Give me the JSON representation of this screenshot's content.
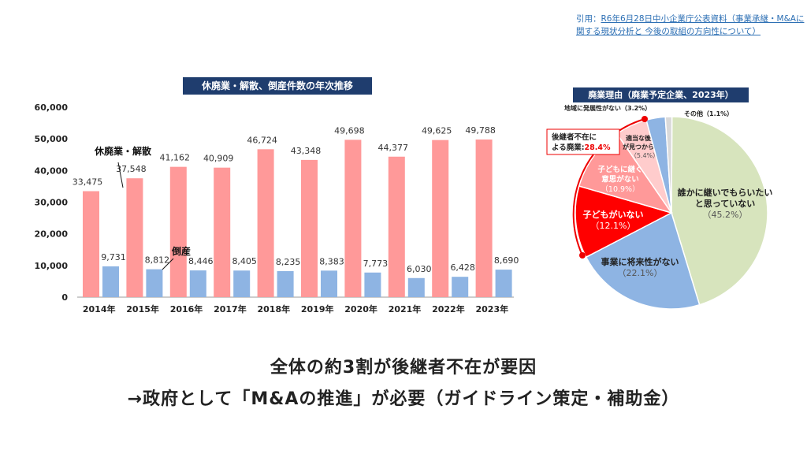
{
  "citation": {
    "prefix": "引用：",
    "text": "R6年6月28日中小企業庁公表資料（事業承継・M&Aに関する現状分析と 今後の取組の方向性について）"
  },
  "colors": {
    "closures": "#ff9999",
    "bankruptcy": "#8eb4e3",
    "title_bg": "#1f3d6e"
  },
  "chart_data": [
    {
      "type": "bar",
      "title": "休廃業・解散、倒産件数の年次推移",
      "categories": [
        "2014年",
        "2015年",
        "2016年",
        "2017年",
        "2018年",
        "2019年",
        "2020年",
        "2021年",
        "2022年",
        "2023年"
      ],
      "series": [
        {
          "name": "休廃業・解散",
          "values": [
            33475,
            37548,
            41162,
            40909,
            46724,
            43348,
            49698,
            44377,
            49625,
            49788
          ],
          "labels": [
            "33,475",
            "37,548",
            "41,162",
            "40,909",
            "46,724",
            "43,348",
            "49,698",
            "44,377",
            "49,625",
            "49,788"
          ]
        },
        {
          "name": "倒産",
          "values": [
            9731,
            8812,
            8446,
            8405,
            8235,
            8383,
            7773,
            6030,
            6428,
            8690
          ],
          "labels": [
            "9,731",
            "8,812",
            "8,446",
            "8,405",
            "8,235",
            "8,383",
            "7,773",
            "6,030",
            "6,428",
            "8,690"
          ]
        }
      ],
      "ylim": [
        0,
        60000
      ],
      "yticks": [
        "0",
        "10,000",
        "20,000",
        "30,000",
        "40,000",
        "50,000",
        "60,000"
      ],
      "grid": false
    },
    {
      "type": "pie",
      "title": "廃業理由（廃業予定企業、2023年）",
      "slices": [
        {
          "label": "誰かに継いでもらいたいと思っていない",
          "value": 45.2,
          "pct": "（45.2%）",
          "color": "#d7e4bd"
        },
        {
          "label": "事業に将来性がない",
          "value": 22.1,
          "pct": "（22.1%）",
          "color": "#8eb4e3"
        },
        {
          "label": "子どもがいない",
          "value": 12.1,
          "pct": "（12.1%）",
          "color": "#ff0000"
        },
        {
          "label": "子どもに継ぐ意思がない",
          "value": 10.9,
          "pct": "（10.9%）",
          "color": "#ff9999"
        },
        {
          "label": "適当な後継者が見つからない",
          "value": 5.4,
          "pct": "（5.4%）",
          "color": "#ffcccc"
        },
        {
          "label": "地域に発展性がない",
          "value": 3.2,
          "pct": "（3.2%）",
          "color": "#8eb4e3"
        },
        {
          "label": "その他",
          "value": 1.1,
          "pct": "（1.1%）",
          "color": "#d9d9d9"
        }
      ],
      "callout": {
        "text": "後継者不在による廃業:",
        "value": "28.4%"
      }
    }
  ],
  "message": {
    "line1": "全体の約3割が後継者不在が要因",
    "line2": "→政府として「M&Aの推進」が必要（ガイドライン策定・補助金）"
  }
}
